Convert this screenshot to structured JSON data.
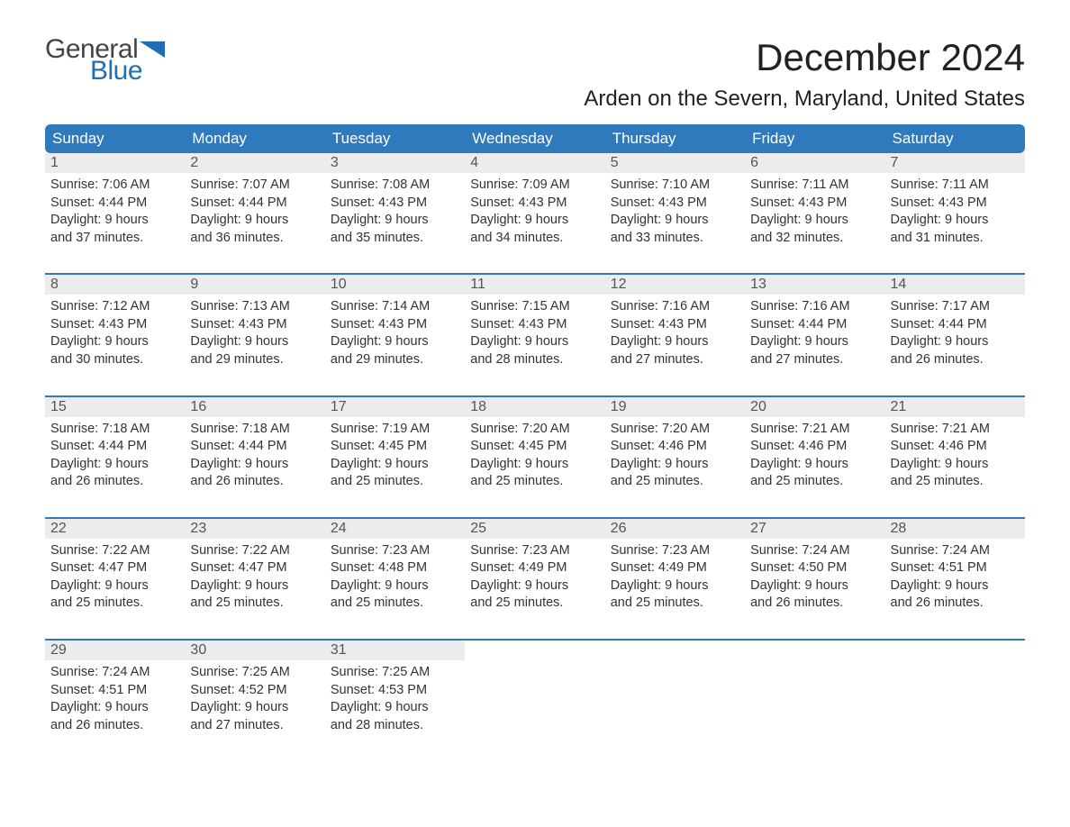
{
  "brand": {
    "word1": "General",
    "word2": "Blue",
    "flag_color": "#1f6fb2",
    "word2_color": "#1f6fb2",
    "word1_color": "#444444"
  },
  "title": "December 2024",
  "location": "Arden on the Severn, Maryland, United States",
  "colors": {
    "header_bg": "#2f79bd",
    "header_text": "#ffffff",
    "daynum_bg": "#ececec",
    "daynum_text": "#555555",
    "body_text": "#333333",
    "week_border": "#2f79bd",
    "page_bg": "#ffffff"
  },
  "day_headers": [
    "Sunday",
    "Monday",
    "Tuesday",
    "Wednesday",
    "Thursday",
    "Friday",
    "Saturday"
  ],
  "weeks": [
    [
      {
        "n": "1",
        "sunrise": "Sunrise: 7:06 AM",
        "sunset": "Sunset: 4:44 PM",
        "day1": "Daylight: 9 hours",
        "day2": "and 37 minutes."
      },
      {
        "n": "2",
        "sunrise": "Sunrise: 7:07 AM",
        "sunset": "Sunset: 4:44 PM",
        "day1": "Daylight: 9 hours",
        "day2": "and 36 minutes."
      },
      {
        "n": "3",
        "sunrise": "Sunrise: 7:08 AM",
        "sunset": "Sunset: 4:43 PM",
        "day1": "Daylight: 9 hours",
        "day2": "and 35 minutes."
      },
      {
        "n": "4",
        "sunrise": "Sunrise: 7:09 AM",
        "sunset": "Sunset: 4:43 PM",
        "day1": "Daylight: 9 hours",
        "day2": "and 34 minutes."
      },
      {
        "n": "5",
        "sunrise": "Sunrise: 7:10 AM",
        "sunset": "Sunset: 4:43 PM",
        "day1": "Daylight: 9 hours",
        "day2": "and 33 minutes."
      },
      {
        "n": "6",
        "sunrise": "Sunrise: 7:11 AM",
        "sunset": "Sunset: 4:43 PM",
        "day1": "Daylight: 9 hours",
        "day2": "and 32 minutes."
      },
      {
        "n": "7",
        "sunrise": "Sunrise: 7:11 AM",
        "sunset": "Sunset: 4:43 PM",
        "day1": "Daylight: 9 hours",
        "day2": "and 31 minutes."
      }
    ],
    [
      {
        "n": "8",
        "sunrise": "Sunrise: 7:12 AM",
        "sunset": "Sunset: 4:43 PM",
        "day1": "Daylight: 9 hours",
        "day2": "and 30 minutes."
      },
      {
        "n": "9",
        "sunrise": "Sunrise: 7:13 AM",
        "sunset": "Sunset: 4:43 PM",
        "day1": "Daylight: 9 hours",
        "day2": "and 29 minutes."
      },
      {
        "n": "10",
        "sunrise": "Sunrise: 7:14 AM",
        "sunset": "Sunset: 4:43 PM",
        "day1": "Daylight: 9 hours",
        "day2": "and 29 minutes."
      },
      {
        "n": "11",
        "sunrise": "Sunrise: 7:15 AM",
        "sunset": "Sunset: 4:43 PM",
        "day1": "Daylight: 9 hours",
        "day2": "and 28 minutes."
      },
      {
        "n": "12",
        "sunrise": "Sunrise: 7:16 AM",
        "sunset": "Sunset: 4:43 PM",
        "day1": "Daylight: 9 hours",
        "day2": "and 27 minutes."
      },
      {
        "n": "13",
        "sunrise": "Sunrise: 7:16 AM",
        "sunset": "Sunset: 4:44 PM",
        "day1": "Daylight: 9 hours",
        "day2": "and 27 minutes."
      },
      {
        "n": "14",
        "sunrise": "Sunrise: 7:17 AM",
        "sunset": "Sunset: 4:44 PM",
        "day1": "Daylight: 9 hours",
        "day2": "and 26 minutes."
      }
    ],
    [
      {
        "n": "15",
        "sunrise": "Sunrise: 7:18 AM",
        "sunset": "Sunset: 4:44 PM",
        "day1": "Daylight: 9 hours",
        "day2": "and 26 minutes."
      },
      {
        "n": "16",
        "sunrise": "Sunrise: 7:18 AM",
        "sunset": "Sunset: 4:44 PM",
        "day1": "Daylight: 9 hours",
        "day2": "and 26 minutes."
      },
      {
        "n": "17",
        "sunrise": "Sunrise: 7:19 AM",
        "sunset": "Sunset: 4:45 PM",
        "day1": "Daylight: 9 hours",
        "day2": "and 25 minutes."
      },
      {
        "n": "18",
        "sunrise": "Sunrise: 7:20 AM",
        "sunset": "Sunset: 4:45 PM",
        "day1": "Daylight: 9 hours",
        "day2": "and 25 minutes."
      },
      {
        "n": "19",
        "sunrise": "Sunrise: 7:20 AM",
        "sunset": "Sunset: 4:46 PM",
        "day1": "Daylight: 9 hours",
        "day2": "and 25 minutes."
      },
      {
        "n": "20",
        "sunrise": "Sunrise: 7:21 AM",
        "sunset": "Sunset: 4:46 PM",
        "day1": "Daylight: 9 hours",
        "day2": "and 25 minutes."
      },
      {
        "n": "21",
        "sunrise": "Sunrise: 7:21 AM",
        "sunset": "Sunset: 4:46 PM",
        "day1": "Daylight: 9 hours",
        "day2": "and 25 minutes."
      }
    ],
    [
      {
        "n": "22",
        "sunrise": "Sunrise: 7:22 AM",
        "sunset": "Sunset: 4:47 PM",
        "day1": "Daylight: 9 hours",
        "day2": "and 25 minutes."
      },
      {
        "n": "23",
        "sunrise": "Sunrise: 7:22 AM",
        "sunset": "Sunset: 4:47 PM",
        "day1": "Daylight: 9 hours",
        "day2": "and 25 minutes."
      },
      {
        "n": "24",
        "sunrise": "Sunrise: 7:23 AM",
        "sunset": "Sunset: 4:48 PM",
        "day1": "Daylight: 9 hours",
        "day2": "and 25 minutes."
      },
      {
        "n": "25",
        "sunrise": "Sunrise: 7:23 AM",
        "sunset": "Sunset: 4:49 PM",
        "day1": "Daylight: 9 hours",
        "day2": "and 25 minutes."
      },
      {
        "n": "26",
        "sunrise": "Sunrise: 7:23 AM",
        "sunset": "Sunset: 4:49 PM",
        "day1": "Daylight: 9 hours",
        "day2": "and 25 minutes."
      },
      {
        "n": "27",
        "sunrise": "Sunrise: 7:24 AM",
        "sunset": "Sunset: 4:50 PM",
        "day1": "Daylight: 9 hours",
        "day2": "and 26 minutes."
      },
      {
        "n": "28",
        "sunrise": "Sunrise: 7:24 AM",
        "sunset": "Sunset: 4:51 PM",
        "day1": "Daylight: 9 hours",
        "day2": "and 26 minutes."
      }
    ],
    [
      {
        "n": "29",
        "sunrise": "Sunrise: 7:24 AM",
        "sunset": "Sunset: 4:51 PM",
        "day1": "Daylight: 9 hours",
        "day2": "and 26 minutes."
      },
      {
        "n": "30",
        "sunrise": "Sunrise: 7:25 AM",
        "sunset": "Sunset: 4:52 PM",
        "day1": "Daylight: 9 hours",
        "day2": "and 27 minutes."
      },
      {
        "n": "31",
        "sunrise": "Sunrise: 7:25 AM",
        "sunset": "Sunset: 4:53 PM",
        "day1": "Daylight: 9 hours",
        "day2": "and 28 minutes."
      },
      null,
      null,
      null,
      null
    ]
  ]
}
